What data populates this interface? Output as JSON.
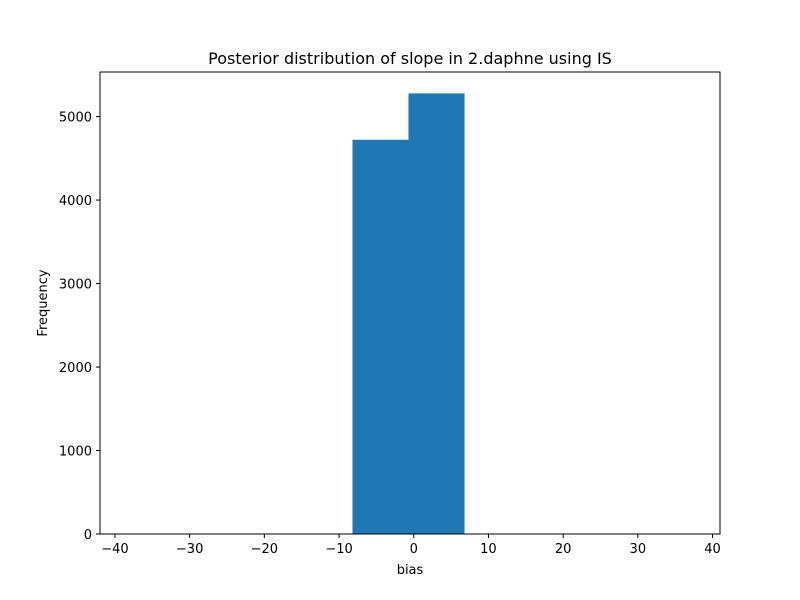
{
  "chart_data": {
    "type": "bar",
    "title": "Posterior distribution of slope in 2.daphne using IS",
    "xlabel": "bias",
    "ylabel": "Frequency",
    "xlim": [
      -42,
      41
    ],
    "ylim": [
      0,
      5534
    ],
    "x_ticks": [
      -40,
      -30,
      -20,
      -10,
      0,
      10,
      20,
      30,
      40
    ],
    "x_tick_labels": [
      "−40",
      "−30",
      "−20",
      "−10",
      "0",
      "10",
      "20",
      "30",
      "40"
    ],
    "y_ticks": [
      0,
      1000,
      2000,
      3000,
      4000,
      5000
    ],
    "y_tick_labels": [
      "0",
      "1000",
      "2000",
      "3000",
      "4000",
      "5000"
    ],
    "bins": [
      {
        "left": -42,
        "right": -34.5,
        "value": 0
      },
      {
        "left": -34.5,
        "right": -27,
        "value": 0
      },
      {
        "left": -27,
        "right": -19.5,
        "value": 0
      },
      {
        "left": -19.5,
        "right": -12,
        "value": 0
      },
      {
        "left": -8.2,
        "right": -0.7,
        "value": 4722
      },
      {
        "left": -0.7,
        "right": 6.8,
        "value": 5278
      },
      {
        "left": 6.8,
        "right": 14.3,
        "value": 0
      },
      {
        "left": 14.3,
        "right": 21.8,
        "value": 0
      },
      {
        "left": 21.8,
        "right": 29.3,
        "value": 0
      },
      {
        "left": 29.3,
        "right": 36.8,
        "value": 0
      }
    ],
    "bar_color": "#1f77b4",
    "grid": false,
    "legend": "none"
  }
}
